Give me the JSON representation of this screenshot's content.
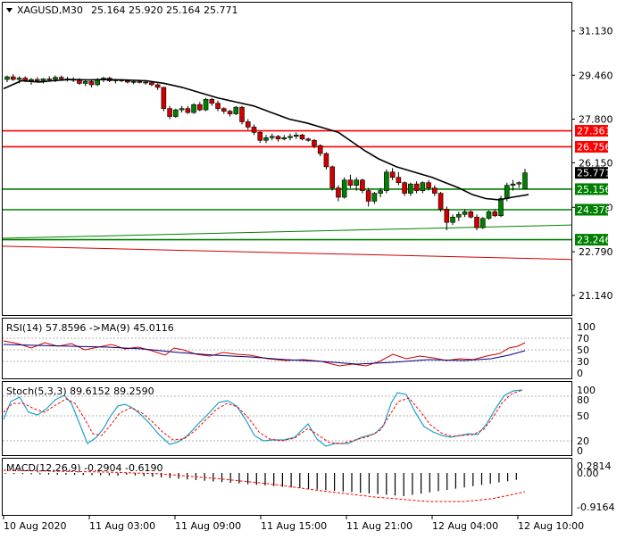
{
  "header": {
    "symbol": "XAGUSD,M30",
    "ohlc": "25.164 25.920 25.164 25.771"
  },
  "price_levels": [
    {
      "label": "27.361",
      "value": 27.361,
      "line_color": "#ff0000",
      "bg": "#ff0000",
      "fg": "#ffffff"
    },
    {
      "label": "26.756",
      "value": 26.756,
      "line_color": "#ff0000",
      "bg": "#ff0000",
      "fg": "#ffffff"
    },
    {
      "label": "25.156",
      "value": 25.156,
      "line_color": "#008000",
      "bg": "#008000",
      "fg": "#ffffff"
    },
    {
      "label": "24.378",
      "value": 24.378,
      "line_color": "#008000",
      "bg": "#008000",
      "fg": "#ffffff"
    },
    {
      "label": "23.246",
      "value": 23.246,
      "line_color": "#008000",
      "bg": "#008000",
      "fg": "#ffffff"
    }
  ],
  "current_price": {
    "label": "25.771",
    "value": 25.771,
    "bg": "#000000",
    "fg": "#ffffff"
  },
  "panes": {
    "rsi": {
      "label": "RSI(14) 57.8596  ->MA(9) 45.0116",
      "levels": [
        "100",
        "70",
        "50",
        "30",
        "0"
      ]
    },
    "stoch": {
      "label": "Stoch(5,3,3) 89.6152 89.2590",
      "levels": [
        "100",
        "80",
        "50",
        "20",
        "0"
      ]
    },
    "macd": {
      "label": "MACD(12,26,9) -0.2904 -0.6190",
      "levels": [
        "0.2814",
        "0.00",
        "-0.9164"
      ]
    }
  },
  "chart_data": [
    {
      "type": "candlestick",
      "title": "XAGUSD,M30",
      "y_ticks": [
        "31.130",
        "29.460",
        "27.800",
        "26.150",
        "24.470",
        "22.790",
        "21.140"
      ],
      "ylim": [
        20.4,
        32.2
      ],
      "x_ticks": [
        "10 Aug 2020",
        "11 Aug 03:00",
        "11 Aug 09:00",
        "11 Aug 15:00",
        "11 Aug 21:00",
        "12 Aug 04:00",
        "12 Aug 10:00"
      ],
      "candles": [
        [
          29.3,
          29.45,
          29.2,
          29.4
        ],
        [
          29.4,
          29.5,
          29.25,
          29.3
        ],
        [
          29.3,
          29.42,
          29.15,
          29.35
        ],
        [
          29.35,
          29.42,
          29.2,
          29.25
        ],
        [
          29.25,
          29.35,
          29.1,
          29.3
        ],
        [
          29.3,
          29.38,
          29.2,
          29.25
        ],
        [
          29.25,
          29.35,
          29.15,
          29.32
        ],
        [
          29.32,
          29.42,
          29.22,
          29.3
        ],
        [
          29.3,
          29.45,
          29.2,
          29.38
        ],
        [
          29.38,
          29.45,
          29.25,
          29.32
        ],
        [
          29.32,
          29.4,
          29.22,
          29.3
        ],
        [
          29.3,
          29.38,
          29.2,
          29.28
        ],
        [
          29.28,
          29.35,
          29.1,
          29.15
        ],
        [
          29.15,
          29.28,
          29.05,
          29.22
        ],
        [
          29.22,
          29.3,
          29.0,
          29.1
        ],
        [
          29.1,
          29.35,
          29.05,
          29.3
        ],
        [
          29.3,
          29.4,
          29.2,
          29.35
        ],
        [
          29.35,
          29.4,
          29.2,
          29.25
        ],
        [
          29.25,
          29.32,
          29.15,
          29.28
        ],
        [
          29.28,
          29.32,
          29.2,
          29.25
        ],
        [
          29.25,
          29.3,
          29.15,
          29.2
        ],
        [
          29.2,
          29.28,
          29.12,
          29.22
        ],
        [
          29.22,
          29.28,
          29.15,
          29.2
        ],
        [
          29.2,
          29.28,
          29.1,
          29.18
        ],
        [
          29.18,
          29.22,
          29.05,
          29.1
        ],
        [
          29.1,
          29.15,
          28.9,
          29.0
        ],
        [
          29.0,
          29.02,
          28.1,
          28.2
        ],
        [
          28.2,
          28.3,
          27.8,
          27.9
        ],
        [
          27.9,
          28.2,
          27.85,
          28.15
        ],
        [
          28.15,
          28.3,
          28.05,
          28.2
        ],
        [
          28.2,
          28.3,
          28.0,
          28.05
        ],
        [
          28.05,
          28.4,
          28.0,
          28.35
        ],
        [
          28.35,
          28.45,
          28.1,
          28.15
        ],
        [
          28.15,
          28.6,
          28.1,
          28.55
        ],
        [
          28.55,
          28.6,
          28.3,
          28.4
        ],
        [
          28.4,
          28.5,
          28.1,
          28.2
        ],
        [
          28.2,
          28.25,
          28.0,
          28.1
        ],
        [
          28.1,
          28.15,
          27.9,
          28.0
        ],
        [
          28.0,
          28.3,
          27.95,
          28.25
        ],
        [
          28.25,
          28.3,
          27.6,
          27.7
        ],
        [
          27.7,
          27.8,
          27.4,
          27.5
        ],
        [
          27.5,
          27.6,
          27.2,
          27.3
        ],
        [
          27.3,
          27.35,
          26.9,
          27.0
        ],
        [
          27.0,
          27.2,
          26.9,
          27.1
        ],
        [
          27.1,
          27.25,
          27.0,
          27.15
        ],
        [
          27.15,
          27.2,
          26.95,
          27.05
        ],
        [
          27.05,
          27.2,
          27.0,
          27.1
        ],
        [
          27.1,
          27.25,
          27.0,
          27.15
        ],
        [
          27.15,
          27.3,
          27.05,
          27.2
        ],
        [
          27.2,
          27.25,
          27.0,
          27.05
        ],
        [
          27.05,
          27.1,
          26.95,
          27.0
        ],
        [
          27.0,
          27.05,
          26.7,
          26.8
        ],
        [
          26.8,
          26.85,
          26.4,
          26.5
        ],
        [
          26.5,
          26.55,
          25.9,
          26.0
        ],
        [
          26.0,
          26.05,
          25.1,
          25.2
        ],
        [
          25.2,
          25.3,
          24.7,
          24.85
        ],
        [
          24.85,
          25.6,
          24.8,
          25.5
        ],
        [
          25.5,
          25.7,
          25.2,
          25.3
        ],
        [
          25.3,
          25.6,
          25.1,
          25.5
        ],
        [
          25.5,
          25.55,
          25.0,
          25.1
        ],
        [
          25.1,
          25.2,
          24.5,
          24.7
        ],
        [
          24.7,
          25.05,
          24.6,
          25.0
        ],
        [
          25.0,
          25.2,
          24.85,
          25.1
        ],
        [
          25.1,
          25.9,
          25.0,
          25.8
        ],
        [
          25.8,
          25.95,
          25.5,
          25.6
        ],
        [
          25.6,
          25.8,
          25.3,
          25.4
        ],
        [
          25.4,
          25.45,
          24.9,
          25.0
        ],
        [
          25.0,
          25.4,
          24.9,
          25.35
        ],
        [
          25.35,
          25.45,
          25.0,
          25.1
        ],
        [
          25.1,
          25.45,
          25.0,
          25.4
        ],
        [
          25.4,
          25.5,
          25.1,
          25.2
        ],
        [
          25.2,
          25.3,
          24.9,
          25.0
        ],
        [
          25.0,
          25.05,
          24.3,
          24.4
        ],
        [
          24.4,
          24.5,
          23.6,
          23.9
        ],
        [
          23.9,
          24.2,
          23.8,
          24.1
        ],
        [
          24.1,
          24.3,
          23.95,
          24.2
        ],
        [
          24.2,
          24.4,
          24.1,
          24.3
        ],
        [
          24.3,
          24.35,
          24.05,
          24.1
        ],
        [
          24.1,
          24.2,
          23.6,
          23.7
        ],
        [
          23.7,
          24.1,
          23.65,
          24.05
        ],
        [
          24.05,
          24.35,
          24.0,
          24.3
        ],
        [
          24.3,
          24.4,
          24.1,
          24.15
        ],
        [
          24.15,
          24.9,
          24.1,
          24.8
        ],
        [
          24.8,
          25.4,
          24.7,
          25.3
        ],
        [
          25.3,
          25.5,
          25.1,
          25.35
        ],
        [
          25.35,
          25.45,
          25.2,
          25.4
        ],
        [
          25.164,
          25.92,
          25.164,
          25.771
        ]
      ],
      "ma": [
        [
          0,
          28.95
        ],
        [
          20,
          29.25
        ],
        [
          40,
          29.2
        ],
        [
          55,
          29.25
        ],
        [
          75,
          29.3
        ],
        [
          95,
          29.28
        ],
        [
          115,
          29.3
        ],
        [
          135,
          29.28
        ],
        [
          160,
          29.25
        ],
        [
          180,
          29.15
        ],
        [
          200,
          29.0
        ],
        [
          220,
          28.8
        ],
        [
          240,
          28.6
        ],
        [
          260,
          28.45
        ],
        [
          280,
          28.3
        ],
        [
          300,
          28.05
        ],
        [
          320,
          27.8
        ],
        [
          340,
          27.65
        ],
        [
          360,
          27.45
        ],
        [
          375,
          27.3
        ],
        [
          390,
          26.95
        ],
        [
          405,
          26.6
        ],
        [
          420,
          26.3
        ],
        [
          440,
          26.0
        ],
        [
          460,
          25.8
        ],
        [
          480,
          25.6
        ],
        [
          495,
          25.4
        ],
        [
          510,
          25.2
        ],
        [
          525,
          24.95
        ],
        [
          540,
          24.8
        ],
        [
          555,
          24.75
        ],
        [
          570,
          24.85
        ],
        [
          588,
          24.95
        ]
      ],
      "channel_green": {
        "from": [
          0,
          23.3
        ],
        "to": [
          640,
          23.8
        ]
      },
      "channel_red": {
        "from": [
          0,
          23.0
        ],
        "to": [
          640,
          22.5
        ]
      }
    }
  ]
}
